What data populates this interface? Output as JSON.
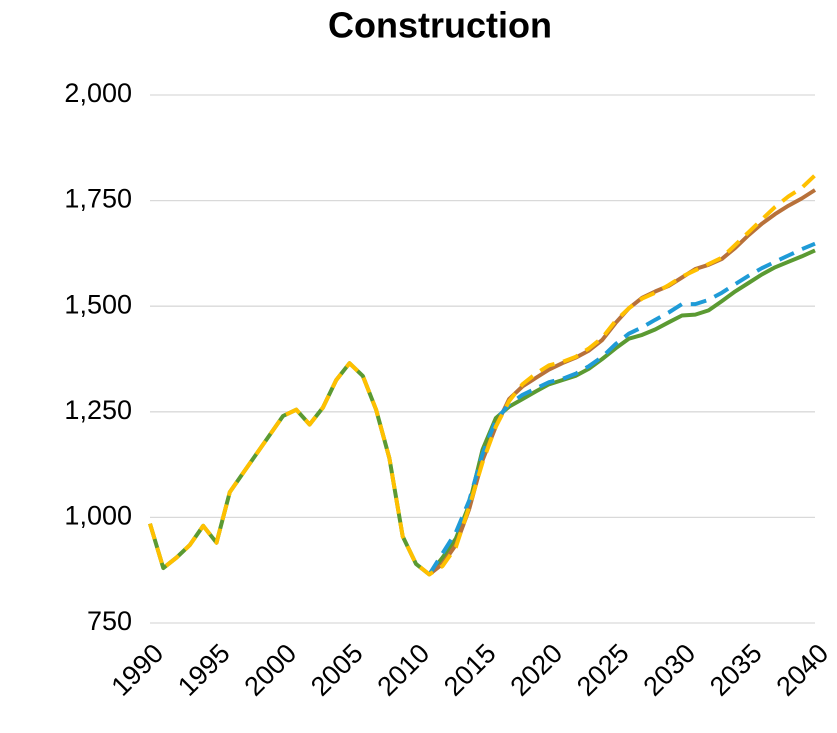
{
  "chart_data": {
    "type": "line",
    "title": "Construction",
    "x": [
      1990,
      1991,
      1992,
      1993,
      1994,
      1995,
      1996,
      1997,
      1998,
      1999,
      2000,
      2001,
      2002,
      2003,
      2004,
      2005,
      2006,
      2007,
      2008,
      2009,
      2010,
      2011,
      2012,
      2013,
      2014,
      2015,
      2016,
      2017,
      2018,
      2019,
      2020,
      2021,
      2022,
      2023,
      2024,
      2025,
      2026,
      2027,
      2028,
      2029,
      2030,
      2031,
      2032,
      2033,
      2034,
      2035,
      2036,
      2037,
      2038,
      2039,
      2040
    ],
    "series": [
      {
        "color": "#5b9a32",
        "dash": false,
        "values": [
          985,
          880,
          905,
          935,
          980,
          940,
          1060,
          1105,
          1150,
          1195,
          1240,
          1255,
          1220,
          1260,
          1325,
          1365,
          1335,
          1255,
          1140,
          955,
          890,
          865,
          905,
          950,
          1030,
          1160,
          1235,
          1262,
          1280,
          1298,
          1315,
          1325,
          1335,
          1352,
          1375,
          1400,
          1423,
          1432,
          1445,
          1462,
          1478,
          1480,
          1490,
          1512,
          1535,
          1555,
          1575,
          1592,
          1605,
          1618,
          1632
        ]
      },
      {
        "color": "#b8713a",
        "dash": false,
        "values": [
          null,
          null,
          null,
          null,
          null,
          null,
          null,
          null,
          null,
          null,
          null,
          null,
          null,
          null,
          null,
          null,
          null,
          null,
          null,
          null,
          null,
          865,
          890,
          935,
          1020,
          1135,
          1215,
          1280,
          1310,
          1330,
          1350,
          1365,
          1378,
          1395,
          1420,
          1460,
          1495,
          1520,
          1535,
          1548,
          1568,
          1588,
          1598,
          1612,
          1638,
          1668,
          1695,
          1718,
          1738,
          1755,
          1775
        ]
      },
      {
        "color": "#1f9bd7",
        "dash": true,
        "values": [
          null,
          null,
          null,
          null,
          null,
          null,
          null,
          null,
          null,
          null,
          null,
          null,
          null,
          null,
          null,
          null,
          null,
          null,
          null,
          null,
          null,
          865,
          915,
          965,
          1040,
          1150,
          1230,
          1268,
          1290,
          1305,
          1320,
          1328,
          1340,
          1358,
          1380,
          1410,
          1435,
          1450,
          1468,
          1485,
          1505,
          1505,
          1515,
          1532,
          1552,
          1572,
          1590,
          1605,
          1620,
          1635,
          1648
        ]
      },
      {
        "color": "#ffc000",
        "dash": true,
        "values": [
          985,
          880,
          905,
          935,
          980,
          940,
          1060,
          1105,
          1150,
          1195,
          1240,
          1255,
          1220,
          1260,
          1325,
          1365,
          1335,
          1255,
          1140,
          955,
          890,
          865,
          885,
          930,
          1025,
          1130,
          1215,
          1275,
          1315,
          1340,
          1360,
          1368,
          1380,
          1400,
          1425,
          1465,
          1495,
          1518,
          1532,
          1550,
          1570,
          1585,
          1600,
          1615,
          1645,
          1675,
          1705,
          1735,
          1760,
          1780,
          1810
        ]
      }
    ],
    "xlim": [
      1990,
      2040
    ],
    "xticks": [
      1990,
      1995,
      2000,
      2005,
      2010,
      2015,
      2020,
      2025,
      2030,
      2035,
      2040
    ],
    "ylim": [
      750,
      2000
    ],
    "yticks": [
      {
        "value": 750,
        "label": "750"
      },
      {
        "value": 1000,
        "label": "1,000"
      },
      {
        "value": 1250,
        "label": "1,250"
      },
      {
        "value": 1500,
        "label": "1,500"
      },
      {
        "value": 1750,
        "label": "1,750"
      },
      {
        "value": 2000,
        "label": "2,000"
      }
    ],
    "grid": true
  }
}
